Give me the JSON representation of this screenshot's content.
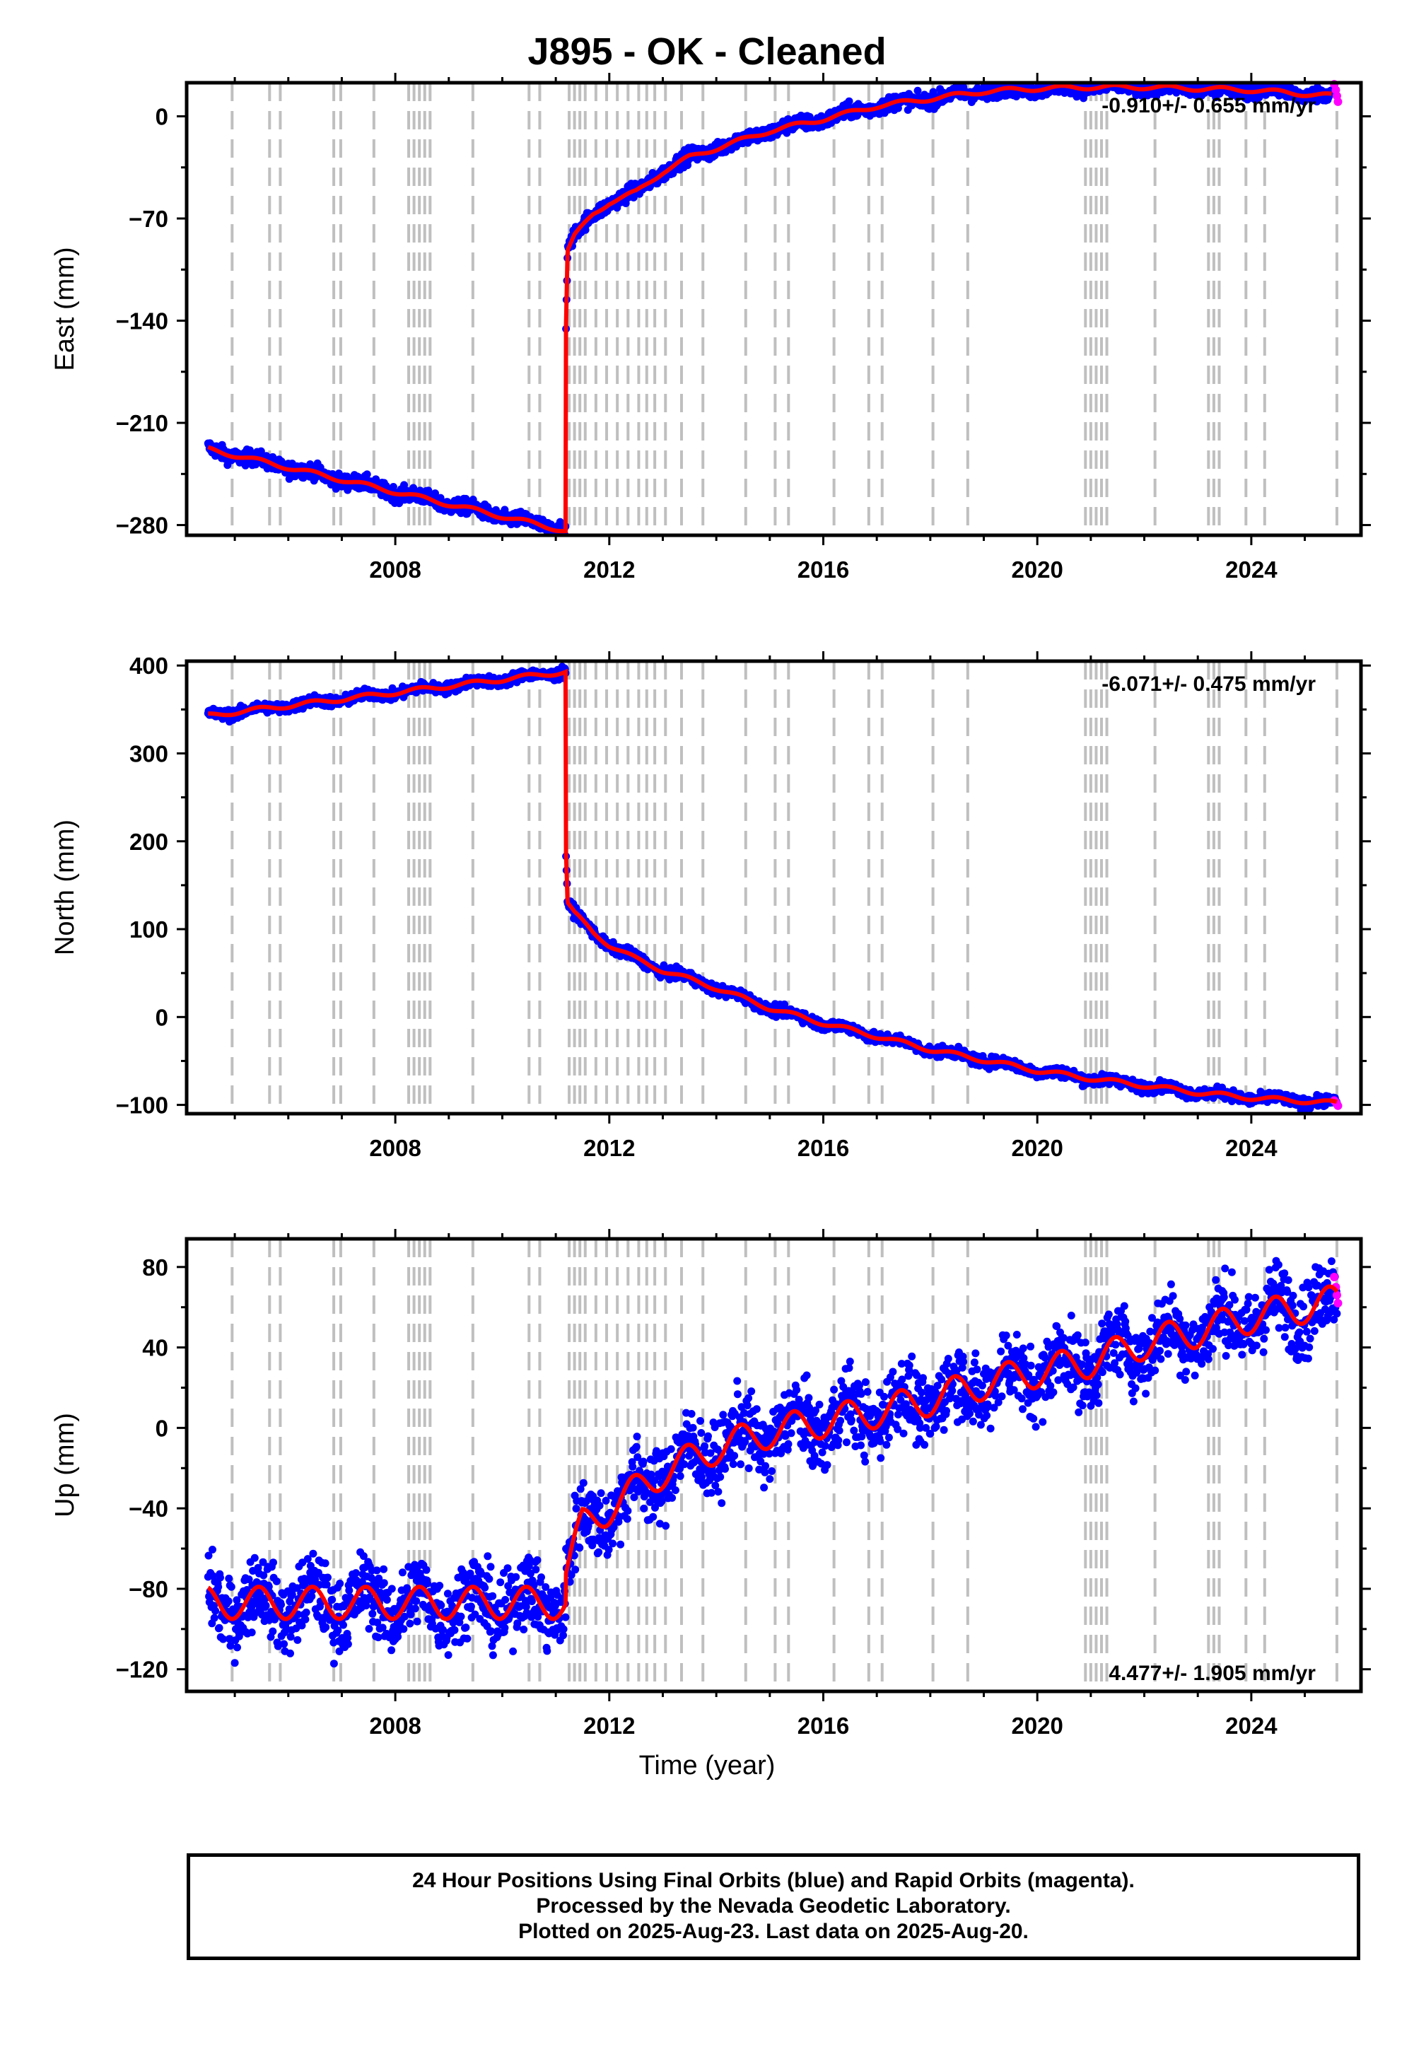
{
  "title": "J895  - OK - Cleaned",
  "x_axis_label": "Time (year)",
  "footer": {
    "line1": "24 Hour Positions Using Final Orbits (blue) and Rapid Orbits (magenta).",
    "line2": "Processed by the Nevada Geodetic Laboratory.",
    "line3": "Plotted on 2025-Aug-23. Last data on 2025-Aug-20."
  },
  "colors": {
    "final_orbits": "#0000ff",
    "rapid_orbits": "#ff00ff",
    "model": "#ff0000",
    "equipment_lines": "#bfbfbf"
  },
  "chart_data": [
    {
      "type": "scatter",
      "component": "east",
      "ylabel": "East (mm)",
      "rate": "-0.910+/- 0.655 mm/yr",
      "rate_position": "top-right",
      "xlim": [
        2004.1,
        2026.05
      ],
      "ylim": [
        -287,
        23
      ],
      "xticks": [
        2008,
        2012,
        2016,
        2020,
        2024
      ],
      "yticks": [
        0,
        -70,
        -140,
        -210,
        -280
      ],
      "events": [
        {
          "year": 2011.19,
          "jump": 140
        }
      ],
      "model_knots": [
        [
          2004.5,
          -228
        ],
        [
          2011.19,
          -284
        ],
        [
          2011.19,
          -144
        ],
        [
          2011.22,
          -92
        ],
        [
          2011.35,
          -82
        ],
        [
          2011.7,
          -67
        ],
        [
          2012.0,
          -59
        ],
        [
          2012.5,
          -52
        ],
        [
          2013.0,
          -38
        ],
        [
          2013.5,
          -28
        ],
        [
          2014.0,
          -22
        ],
        [
          2015.0,
          -10
        ],
        [
          2016.0,
          -2
        ],
        [
          2017.0,
          7
        ],
        [
          2018.0,
          12
        ],
        [
          2019.0,
          17
        ],
        [
          2020.0,
          19
        ],
        [
          2021.0,
          20
        ],
        [
          2022.0,
          20
        ],
        [
          2023.0,
          19
        ],
        [
          2024.0,
          18
        ],
        [
          2025.5,
          14
        ]
      ],
      "annual_amplitude": 1.5,
      "scatter": 2.5,
      "rapid_points": [
        [
          2025.55,
          22
        ],
        [
          2025.58,
          18
        ],
        [
          2025.6,
          14
        ],
        [
          2025.62,
          10
        ]
      ],
      "equipment_change_years": [
        2004.95,
        2005.65,
        2005.85,
        2006.85,
        2006.98,
        2007.6,
        2008.25,
        2008.35,
        2008.45,
        2008.55,
        2008.65,
        2009.45,
        2010.5,
        2010.7,
        2011.25,
        2011.35,
        2011.45,
        2011.55,
        2011.75,
        2011.95,
        2012.15,
        2012.35,
        2012.55,
        2012.7,
        2012.85,
        2013.05,
        2013.35,
        2013.75,
        2014.55,
        2015.1,
        2015.35,
        2016.2,
        2016.85,
        2017.1,
        2018.05,
        2018.7,
        2020.9,
        2021.0,
        2021.1,
        2021.2,
        2021.3,
        2022.2,
        2023.2,
        2023.3,
        2023.4,
        2023.9,
        2024.25,
        2025.6
      ]
    },
    {
      "type": "scatter",
      "component": "north",
      "ylabel": "North (mm)",
      "rate": "-6.071+/- 0.475 mm/yr",
      "rate_position": "top-right",
      "xlim": [
        2004.1,
        2026.05
      ],
      "ylim": [
        -110,
        405
      ],
      "xticks": [
        2008,
        2012,
        2016,
        2020,
        2024
      ],
      "yticks": [
        400,
        300,
        200,
        100,
        0,
        -100
      ],
      "events": [
        {
          "year": 2011.19,
          "jump": -205
        }
      ],
      "model_knots": [
        [
          2004.5,
          343
        ],
        [
          2011.19,
          393
        ],
        [
          2011.19,
          188
        ],
        [
          2011.22,
          130
        ],
        [
          2011.35,
          118
        ],
        [
          2011.7,
          96
        ],
        [
          2012.0,
          82
        ],
        [
          2012.5,
          66
        ],
        [
          2013.0,
          53
        ],
        [
          2014.0,
          33
        ],
        [
          2015.0,
          10
        ],
        [
          2016.0,
          -7
        ],
        [
          2017.0,
          -22
        ],
        [
          2018.0,
          -37
        ],
        [
          2019.0,
          -49
        ],
        [
          2020.0,
          -61
        ],
        [
          2021.0,
          -70
        ],
        [
          2022.0,
          -78
        ],
        [
          2023.0,
          -86
        ],
        [
          2024.0,
          -92
        ],
        [
          2025.6,
          -98
        ]
      ],
      "annual_amplitude": 2.5,
      "scatter": 3,
      "rapid_points": [
        [
          2025.55,
          -95
        ],
        [
          2025.58,
          -97
        ],
        [
          2025.6,
          -99
        ],
        [
          2025.62,
          -101
        ]
      ],
      "equipment_change_years": [
        2004.95,
        2005.65,
        2005.85,
        2006.85,
        2006.98,
        2007.6,
        2008.25,
        2008.35,
        2008.45,
        2008.55,
        2008.65,
        2009.45,
        2010.5,
        2010.7,
        2011.25,
        2011.35,
        2011.45,
        2011.55,
        2011.75,
        2011.95,
        2012.15,
        2012.35,
        2012.55,
        2012.7,
        2012.85,
        2013.05,
        2013.35,
        2013.75,
        2014.55,
        2015.1,
        2015.35,
        2016.2,
        2016.85,
        2017.1,
        2018.05,
        2018.7,
        2020.9,
        2021.0,
        2021.1,
        2021.2,
        2021.3,
        2022.2,
        2023.2,
        2023.3,
        2023.4,
        2023.9,
        2024.25,
        2025.6
      ]
    },
    {
      "type": "scatter",
      "component": "up",
      "ylabel": "Up (mm)",
      "rate": "4.477+/- 1.905 mm/yr",
      "rate_position": "bottom-right",
      "xlim": [
        2004.1,
        2026.05
      ],
      "ylim": [
        -131,
        94
      ],
      "xticks": [
        2008,
        2012,
        2016,
        2020,
        2024
      ],
      "yticks": [
        80,
        40,
        0,
        -40,
        -80,
        -120
      ],
      "events": [
        {
          "year": 2011.19,
          "jump": 15
        }
      ],
      "model_knots": [
        [
          2004.5,
          -87
        ],
        [
          2011.19,
          -87
        ],
        [
          2011.19,
          -72
        ],
        [
          2011.5,
          -48
        ],
        [
          2012.0,
          -40
        ],
        [
          2013.0,
          -22
        ],
        [
          2014.0,
          -10
        ],
        [
          2015.0,
          -2
        ],
        [
          2016.0,
          3
        ],
        [
          2017.0,
          8
        ],
        [
          2018.0,
          14
        ],
        [
          2019.0,
          22
        ],
        [
          2020.0,
          28
        ],
        [
          2021.0,
          33
        ],
        [
          2022.0,
          42
        ],
        [
          2023.0,
          48
        ],
        [
          2024.0,
          55
        ],
        [
          2025.0,
          60
        ],
        [
          2025.6,
          63
        ]
      ],
      "annual_amplitude": 8,
      "scatter": 9,
      "rapid_points": [
        [
          2025.55,
          75
        ],
        [
          2025.58,
          70
        ],
        [
          2025.6,
          66
        ],
        [
          2025.62,
          62
        ]
      ],
      "equipment_change_years": [
        2004.95,
        2005.65,
        2005.85,
        2006.85,
        2006.98,
        2007.6,
        2008.25,
        2008.35,
        2008.45,
        2008.55,
        2008.65,
        2009.45,
        2010.5,
        2010.7,
        2011.25,
        2011.35,
        2011.45,
        2011.55,
        2011.75,
        2011.95,
        2012.15,
        2012.35,
        2012.55,
        2012.7,
        2012.85,
        2013.05,
        2013.35,
        2013.75,
        2014.55,
        2015.1,
        2015.35,
        2016.2,
        2016.85,
        2017.1,
        2018.05,
        2018.7,
        2020.9,
        2021.0,
        2021.1,
        2021.2,
        2021.3,
        2022.2,
        2023.2,
        2023.3,
        2023.4,
        2023.9,
        2024.25,
        2025.6
      ]
    }
  ]
}
